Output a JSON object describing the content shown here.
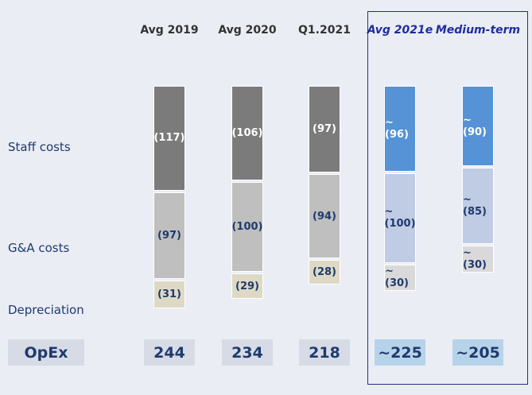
{
  "chart_data": {
    "type": "bar",
    "stacked": true,
    "categories": [
      "Avg 2019",
      "Avg 2020",
      "Q1.2021",
      "Avg 2021e",
      "Medium-term"
    ],
    "highlighted_categories": [
      "Avg 2021e",
      "Medium-term"
    ],
    "series": [
      {
        "name": "Staff costs",
        "values": [
          117,
          106,
          97,
          96,
          90
        ],
        "labels": [
          "(117)",
          "(106)",
          "(97)",
          "~(96)",
          "~(90)"
        ]
      },
      {
        "name": "G&A costs",
        "values": [
          97,
          100,
          94,
          100,
          85
        ],
        "labels": [
          "(97)",
          "(100)",
          "(94)",
          "~(100)",
          "~(85)"
        ]
      },
      {
        "name": "Depreciation",
        "values": [
          31,
          29,
          28,
          30,
          30
        ],
        "labels": [
          "(31)",
          "(29)",
          "(28)",
          "~(30)",
          "~(30)"
        ]
      }
    ],
    "totals_label": "OpEx",
    "totals": [
      "244",
      "234",
      "218",
      "~225",
      "~205"
    ]
  },
  "colors": {
    "staff_actual": "#7b7b7b",
    "ga_actual": "#bfbfbf",
    "dep_actual": "#ddd9c4",
    "staff_est": "#5592d6",
    "ga_est": "#c0cbe4",
    "dep_est": "#d9d9d9",
    "label_white": "#ffffff",
    "label_dark": "#1f3a6e",
    "total_actual_bg": "#d6dbe5",
    "total_est_bg": "#b7d3ea"
  }
}
